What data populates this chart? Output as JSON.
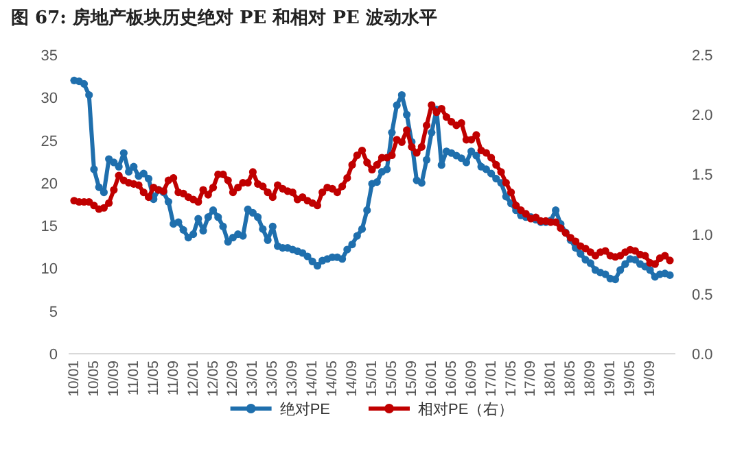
{
  "chart_data": {
    "type": "line",
    "title": "图 67: 房地产板块历史绝对 PE 和相对 PE 波动水平",
    "categories": [
      "10/01",
      null,
      null,
      null,
      "10/05",
      null,
      null,
      null,
      "10/09",
      null,
      null,
      null,
      "11/01",
      null,
      null,
      null,
      "11/05",
      null,
      null,
      null,
      "11/09",
      null,
      null,
      null,
      "12/01",
      null,
      null,
      null,
      "12/05",
      null,
      null,
      null,
      "12/09",
      null,
      null,
      null,
      "13/01",
      null,
      null,
      null,
      "13/05",
      null,
      null,
      null,
      "13/09",
      null,
      null,
      null,
      "14/01",
      null,
      null,
      null,
      "14/05",
      null,
      null,
      null,
      "14/09",
      null,
      null,
      null,
      "15/01",
      null,
      null,
      null,
      "15/05",
      null,
      null,
      null,
      "15/09",
      null,
      null,
      null,
      "16/01",
      null,
      null,
      null,
      "16/05",
      null,
      null,
      null,
      "16/09",
      null,
      null,
      null,
      "17/01",
      null,
      null,
      null,
      "17/05",
      null,
      null,
      null,
      "17/09",
      null,
      null,
      null,
      "18/01",
      null,
      null,
      null,
      "18/05",
      null,
      null,
      null,
      "18/09",
      null,
      null,
      null,
      "19/01",
      null,
      null,
      null,
      "19/05",
      null,
      null,
      null,
      "19/09",
      null,
      null,
      null,
      null
    ],
    "series": [
      {
        "name": "绝对PE",
        "color": "#1f6fad",
        "axis": "y",
        "values": [
          32.0,
          31.9,
          31.6,
          30.3,
          21.6,
          19.5,
          18.9,
          22.8,
          22.4,
          21.9,
          23.5,
          21.3,
          21.9,
          20.8,
          21.1,
          20.5,
          18.1,
          19.2,
          18.9,
          17.8,
          15.2,
          15.4,
          14.5,
          13.6,
          14.0,
          15.8,
          14.4,
          16.0,
          16.8,
          16.0,
          14.9,
          13.1,
          13.6,
          14.0,
          13.8,
          16.9,
          16.5,
          16.0,
          14.6,
          13.3,
          14.9,
          12.6,
          12.4,
          12.4,
          12.2,
          12.0,
          11.8,
          11.4,
          10.8,
          10.3,
          10.9,
          11.1,
          11.3,
          11.3,
          11.1,
          12.2,
          12.8,
          13.8,
          14.6,
          16.8,
          19.9,
          20.1,
          21.3,
          21.6,
          25.9,
          29.1,
          30.3,
          28.0,
          24.8,
          20.3,
          20.0,
          22.7,
          25.9,
          28.6,
          22.1,
          23.7,
          23.5,
          23.2,
          22.9,
          22.4,
          23.7,
          23.2,
          21.9,
          21.6,
          21.1,
          20.5,
          20.0,
          18.4,
          17.6,
          16.8,
          16.2,
          16.0,
          16.0,
          15.7,
          15.4,
          15.4,
          15.6,
          16.8,
          15.2,
          14.2,
          13.3,
          12.4,
          11.7,
          11.0,
          10.6,
          9.8,
          9.5,
          9.3,
          8.8,
          8.7,
          9.8,
          10.5,
          11.1,
          11.0,
          10.5,
          10.2,
          9.8,
          9.0,
          9.3,
          9.4,
          9.2
        ]
      },
      {
        "name": "相对PE（右）",
        "color": "#c00000",
        "axis": "y2",
        "values": [
          1.28,
          1.27,
          1.27,
          1.27,
          1.24,
          1.21,
          1.22,
          1.26,
          1.37,
          1.49,
          1.45,
          1.43,
          1.42,
          1.41,
          1.35,
          1.31,
          1.39,
          1.37,
          1.36,
          1.45,
          1.47,
          1.35,
          1.34,
          1.31,
          1.29,
          1.27,
          1.37,
          1.33,
          1.39,
          1.5,
          1.5,
          1.45,
          1.35,
          1.39,
          1.43,
          1.43,
          1.52,
          1.42,
          1.4,
          1.35,
          1.31,
          1.41,
          1.38,
          1.36,
          1.35,
          1.29,
          1.31,
          1.28,
          1.26,
          1.24,
          1.35,
          1.39,
          1.38,
          1.35,
          1.4,
          1.47,
          1.58,
          1.66,
          1.7,
          1.6,
          1.54,
          1.58,
          1.64,
          1.64,
          1.66,
          1.79,
          1.77,
          1.87,
          1.73,
          1.68,
          1.73,
          1.91,
          2.08,
          2.02,
          2.05,
          1.98,
          1.94,
          1.91,
          1.93,
          1.79,
          1.79,
          1.83,
          1.7,
          1.68,
          1.64,
          1.58,
          1.52,
          1.43,
          1.35,
          1.24,
          1.2,
          1.17,
          1.13,
          1.14,
          1.11,
          1.11,
          1.1,
          1.1,
          1.05,
          1.01,
          0.97,
          0.94,
          0.9,
          0.88,
          0.85,
          0.82,
          0.85,
          0.86,
          0.82,
          0.81,
          0.82,
          0.85,
          0.87,
          0.86,
          0.83,
          0.82,
          0.76,
          0.75,
          0.8,
          0.82,
          0.78
        ]
      }
    ],
    "ylim": [
      0,
      35
    ],
    "yticks": [
      0,
      5,
      10,
      15,
      20,
      25,
      30,
      35
    ],
    "y2lim": [
      0,
      2.5
    ],
    "y2ticks": [
      {
        "value": 0,
        "label": "0.0"
      },
      {
        "value": 0.5,
        "label": "0.5"
      },
      {
        "value": 1,
        "label": "1.0"
      },
      {
        "value": 1.5,
        "label": "1.5"
      },
      {
        "value": 2,
        "label": "2.0"
      },
      {
        "value": 2.5,
        "label": "2.5"
      }
    ],
    "marker": "circle",
    "legend": "bottom"
  }
}
